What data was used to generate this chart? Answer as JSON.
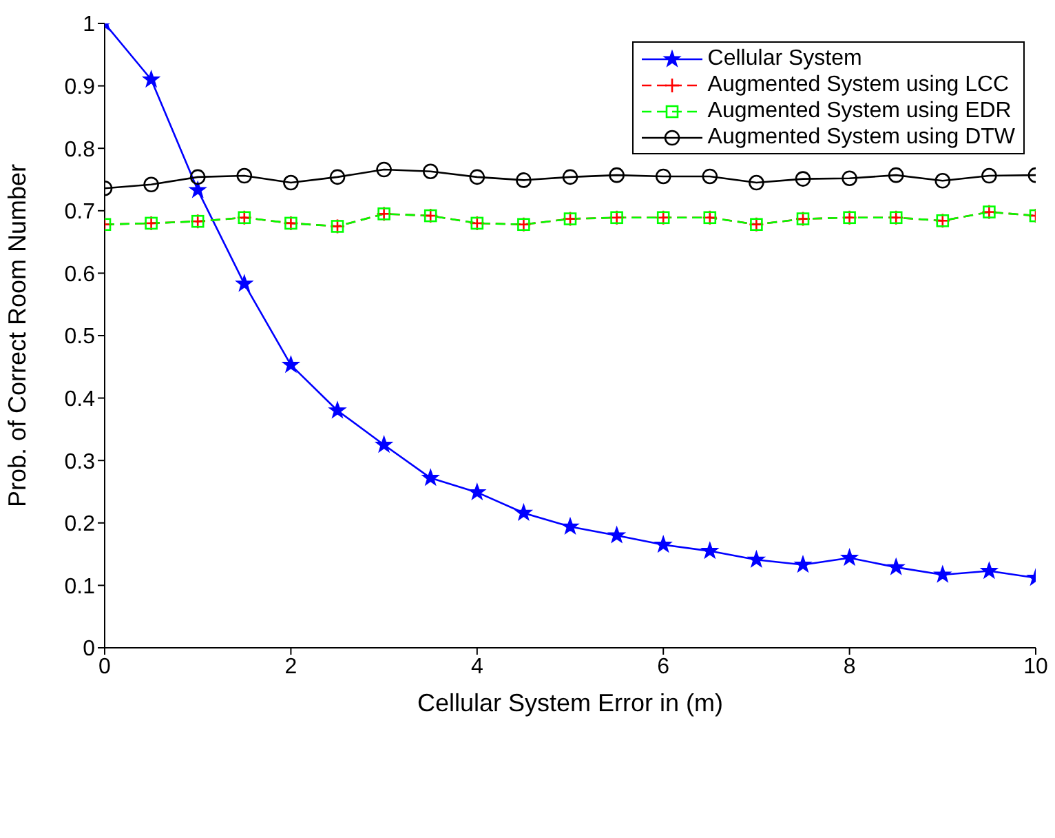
{
  "chart_data": {
    "type": "line",
    "xlabel": "Cellular System Error in (m)",
    "ylabel": "Prob. of Correct Room Number",
    "x": [
      0,
      0.5,
      1,
      1.5,
      2,
      2.5,
      3,
      3.5,
      4,
      4.5,
      5,
      5.5,
      6,
      6.5,
      7,
      7.5,
      8,
      8.5,
      9,
      9.5,
      10
    ],
    "series": [
      {
        "name": "Cellular System",
        "color": "#0000ff",
        "marker": "star",
        "line_style": "solid",
        "values": [
          1,
          0.91,
          0.733,
          0.583,
          0.453,
          0.38,
          0.325,
          0.272,
          0.249,
          0.216,
          0.194,
          0.18,
          0.165,
          0.155,
          0.141,
          0.133,
          0.144,
          0.129,
          0.117,
          0.123,
          0.112
        ]
      },
      {
        "name": "Augmented System using LCC",
        "color": "#ff0000",
        "marker": "cross",
        "line_style": "dashed",
        "values": [
          0.678,
          0.68,
          0.683,
          0.689,
          0.68,
          0.675,
          0.695,
          0.692,
          0.68,
          0.678,
          0.687,
          0.689,
          0.689,
          0.689,
          0.678,
          0.687,
          0.689,
          0.689,
          0.684,
          0.698,
          0.692
        ]
      },
      {
        "name": "Augmented System using EDR",
        "color": "#00ff00",
        "marker": "square",
        "line_style": "dashed",
        "values": [
          0.678,
          0.68,
          0.683,
          0.689,
          0.68,
          0.675,
          0.695,
          0.692,
          0.68,
          0.678,
          0.687,
          0.689,
          0.689,
          0.689,
          0.678,
          0.687,
          0.689,
          0.689,
          0.684,
          0.698,
          0.692
        ]
      },
      {
        "name": "Augmented System using DTW",
        "color": "#000000",
        "marker": "circle",
        "line_style": "solid",
        "values": [
          0.736,
          0.742,
          0.754,
          0.756,
          0.745,
          0.754,
          0.766,
          0.763,
          0.754,
          0.749,
          0.754,
          0.757,
          0.755,
          0.755,
          0.745,
          0.751,
          0.752,
          0.757,
          0.748,
          0.756,
          0.757
        ]
      }
    ],
    "xlim": [
      0,
      10
    ],
    "xticks": [
      0,
      2,
      4,
      6,
      8,
      10
    ],
    "ylim": [
      0,
      1
    ],
    "yticks": [
      0,
      0.1,
      0.2,
      0.3,
      0.4,
      0.5,
      0.6,
      0.7,
      0.8,
      0.9,
      1
    ],
    "grid": false,
    "legend": "top right"
  }
}
